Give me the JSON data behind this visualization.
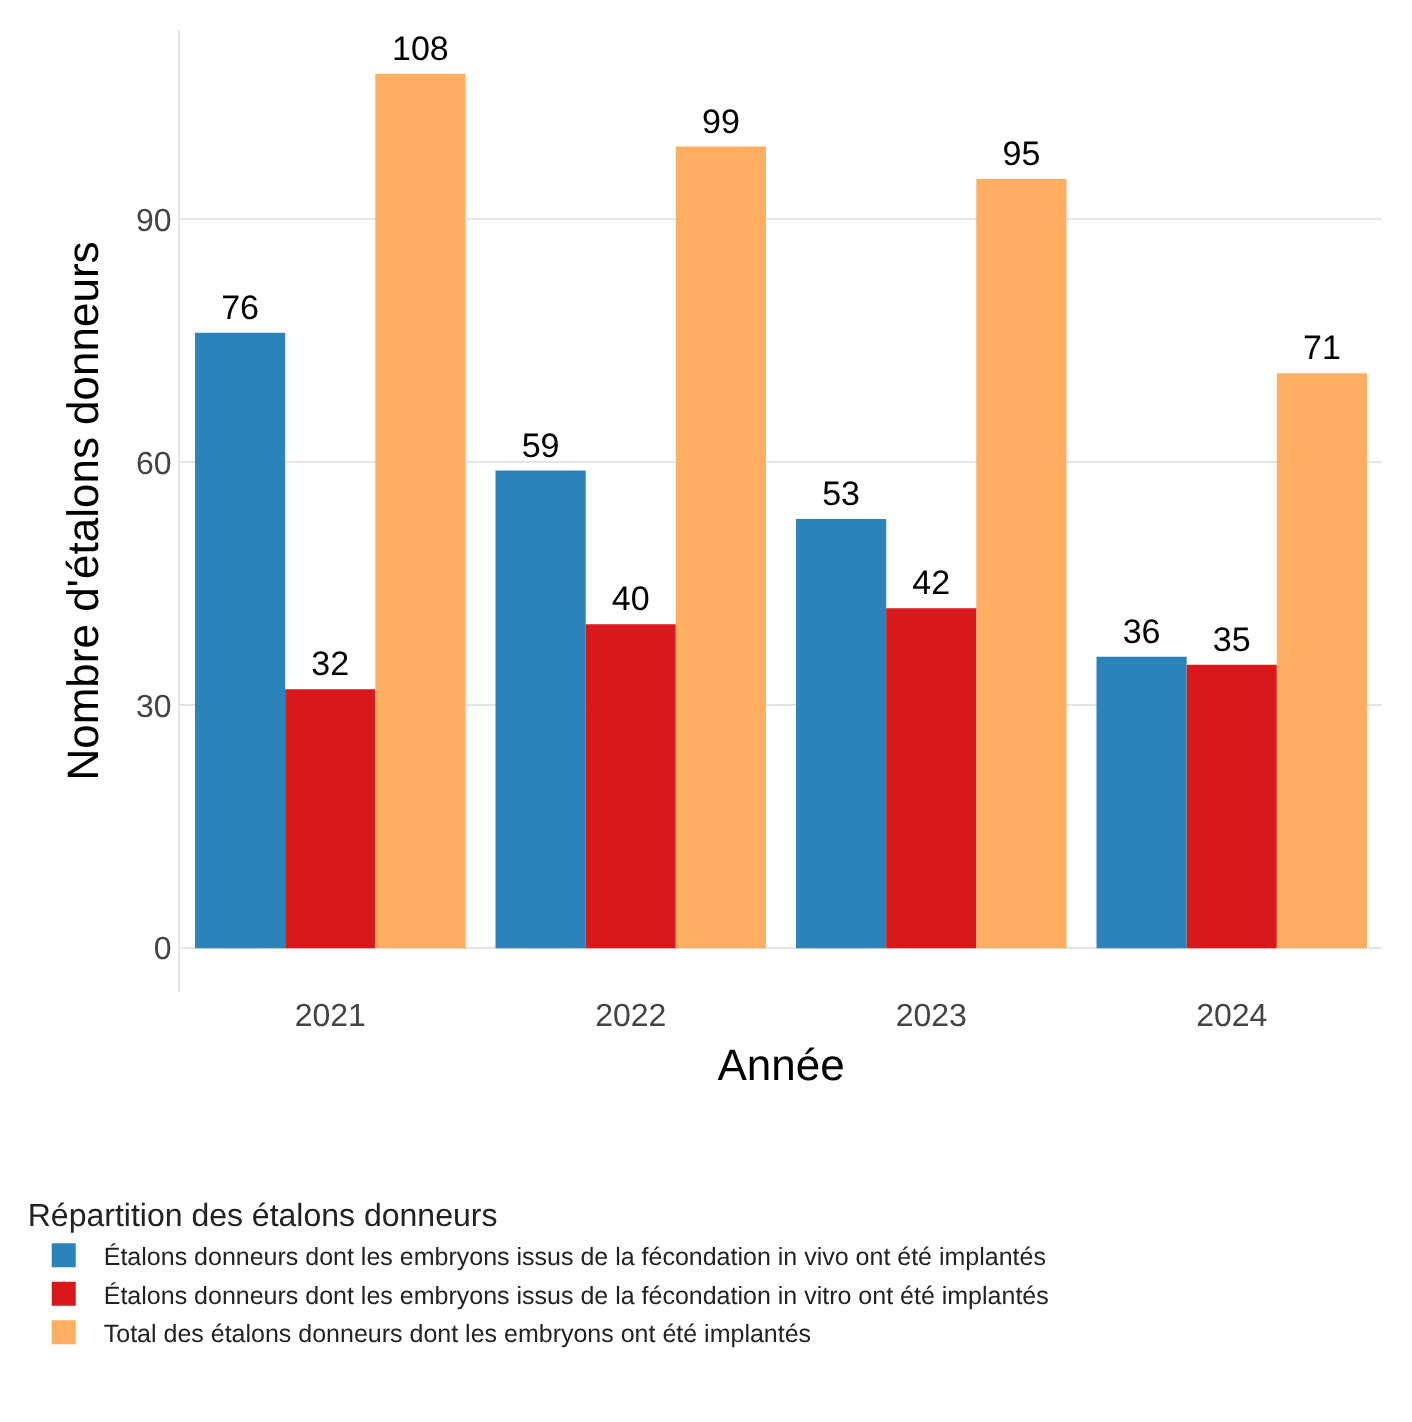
{
  "chart_data": {
    "type": "bar",
    "xlabel": "Année",
    "ylabel": "Nombre d'étalons donneurs",
    "legend_title": "Répartition des étalons donneurs",
    "categories": [
      "2021",
      "2022",
      "2023",
      "2024"
    ],
    "series": [
      {
        "name": "Étalons donneurs dont les embryons issus de la fécondation in vivo ont été implantés",
        "color": "#2b83ba",
        "values": [
          76,
          59,
          53,
          36
        ]
      },
      {
        "name": "Étalons donneurs dont les embryons issus de la fécondation in vitro ont été implantés",
        "color": "#d7191c",
        "values": [
          32,
          40,
          42,
          35
        ]
      },
      {
        "name": "Total des étalons donneurs dont les embryons ont été implantés",
        "color": "#fdae61",
        "values": [
          108,
          99,
          95,
          71
        ]
      }
    ],
    "ylim": [
      -5.4,
      113.4
    ],
    "yticks": [
      0,
      30,
      60,
      90
    ],
    "grid": "y",
    "legend": "bottom",
    "data_labels": true
  }
}
